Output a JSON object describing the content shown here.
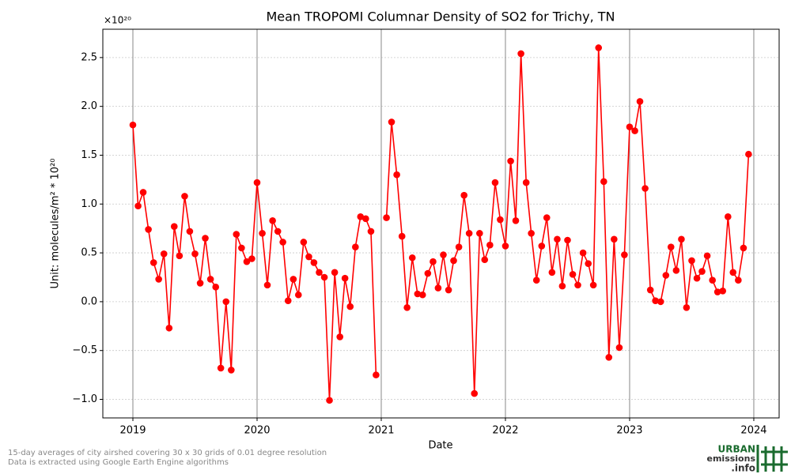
{
  "chart_data": {
    "type": "line",
    "title": "Mean TROPOMI Columnar Density of SO2 for Trichy, TN",
    "x_label": "Date",
    "y_label": "Unit: molecules/m² * 10²⁰",
    "y_offset": "×10²⁰",
    "x": [
      2019.0,
      2019.042,
      2019.083,
      2019.125,
      2019.167,
      2019.208,
      2019.25,
      2019.292,
      2019.333,
      2019.375,
      2019.417,
      2019.458,
      2019.5,
      2019.542,
      2019.583,
      2019.625,
      2019.667,
      2019.708,
      2019.75,
      2019.792,
      2019.833,
      2019.875,
      2019.917,
      2019.958,
      2020.0,
      2020.042,
      2020.083,
      2020.125,
      2020.167,
      2020.208,
      2020.25,
      2020.292,
      2020.333,
      2020.375,
      2020.417,
      2020.458,
      2020.5,
      2020.542,
      2020.583,
      2020.625,
      2020.667,
      2020.708,
      2020.75,
      2020.792,
      2020.833,
      2020.875,
      2020.917,
      2020.958,
      2021.0,
      2021.042,
      2021.083,
      2021.125,
      2021.167,
      2021.208,
      2021.25,
      2021.292,
      2021.333,
      2021.375,
      2021.417,
      2021.458,
      2021.5,
      2021.542,
      2021.583,
      2021.625,
      2021.667,
      2021.708,
      2021.75,
      2021.792,
      2021.833,
      2021.875,
      2021.917,
      2021.958,
      2022.0,
      2022.042,
      2022.083,
      2022.125,
      2022.167,
      2022.208,
      2022.25,
      2022.292,
      2022.333,
      2022.375,
      2022.417,
      2022.458,
      2022.5,
      2022.542,
      2022.583,
      2022.625,
      2022.667,
      2022.708,
      2022.75,
      2022.792,
      2022.833,
      2022.875,
      2022.917,
      2022.958,
      2023.0,
      2023.042,
      2023.083,
      2023.125,
      2023.167,
      2023.208,
      2023.25,
      2023.292,
      2023.333,
      2023.375,
      2023.417,
      2023.458,
      2023.5,
      2023.542,
      2023.583,
      2023.625,
      2023.667,
      2023.708,
      2023.75,
      2023.792,
      2023.833,
      2023.875,
      2023.917,
      2023.958
    ],
    "series": [
      {
        "color": "#ff0000",
        "values": [
          1.81,
          0.98,
          1.12,
          0.74,
          0.4,
          0.23,
          0.49,
          -0.27,
          0.77,
          0.47,
          1.08,
          0.72,
          0.49,
          0.19,
          0.65,
          0.23,
          0.15,
          -0.68,
          0.0,
          -0.7,
          0.69,
          0.55,
          0.41,
          0.44,
          1.22,
          0.7,
          0.17,
          0.83,
          0.72,
          0.61,
          0.01,
          0.23,
          0.07,
          0.61,
          0.46,
          0.4,
          0.3,
          0.25,
          -1.01,
          0.3,
          -0.36,
          0.24,
          -0.05,
          0.56,
          0.87,
          0.85,
          0.72,
          -0.75,
          null,
          0.86,
          1.84,
          1.3,
          0.67,
          -0.06,
          0.45,
          0.08,
          0.07,
          0.29,
          0.41,
          0.14,
          0.48,
          0.12,
          0.42,
          0.56,
          1.09,
          0.7,
          -0.94,
          0.7,
          0.43,
          0.58,
          1.22,
          0.84,
          0.57,
          1.44,
          0.83,
          2.54,
          1.22,
          0.7,
          0.22,
          0.57,
          0.86,
          0.3,
          0.64,
          0.16,
          0.63,
          0.28,
          0.17,
          0.5,
          0.39,
          0.17,
          2.6,
          1.23,
          -0.57,
          0.64,
          -0.47,
          0.48,
          1.79,
          1.75,
          2.05,
          1.16,
          0.12,
          0.01,
          0.0,
          0.27,
          0.56,
          0.32,
          0.64,
          -0.06,
          0.42,
          0.24,
          0.31,
          0.47,
          0.22,
          0.1,
          0.11,
          0.87,
          0.3,
          0.22,
          0.55,
          1.51
        ]
      }
    ],
    "xlim": [
      2018.758,
      2024.204
    ],
    "xticks": [
      2019,
      2020,
      2021,
      2022,
      2023,
      2024
    ],
    "ylim": [
      -1.19,
      2.79
    ],
    "yticks": [
      {
        "value": -1.0,
        "label": "−1.0"
      },
      {
        "value": -0.5,
        "label": "−0.5"
      },
      {
        "value": 0.0,
        "label": "0.0"
      },
      {
        "value": 0.5,
        "label": "0.5"
      },
      {
        "value": 1.0,
        "label": "1.0"
      },
      {
        "value": 1.5,
        "label": "1.5"
      },
      {
        "value": 2.0,
        "label": "2.0"
      },
      {
        "value": 2.5,
        "label": "2.5"
      }
    ],
    "grid": true,
    "footnotes": [
      "15-day averages of city airshed covering 30 x 30 grids of 0.01 degree resolution",
      "Data is extracted using Google Earth Engine algorithms"
    ],
    "logo": [
      "URBAN",
      "emissions",
      ".info"
    ]
  }
}
